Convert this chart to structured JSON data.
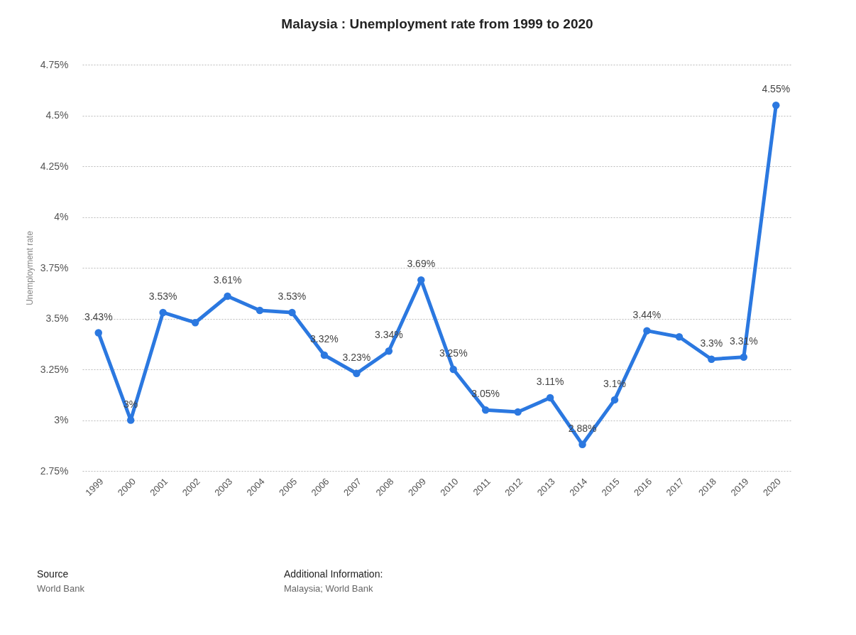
{
  "chart_data": {
    "type": "line",
    "title": "Malaysia : Unemployment rate from 1999 to 2020",
    "ylabel": "Unemployment rate",
    "categories": [
      "1999",
      "2000",
      "2001",
      "2002",
      "2003",
      "2004",
      "2005",
      "2006",
      "2007",
      "2008",
      "2009",
      "2010",
      "2011",
      "2012",
      "2013",
      "2014",
      "2015",
      "2016",
      "2017",
      "2018",
      "2019",
      "2020"
    ],
    "series": [
      {
        "color": "#2b78e0",
        "values": [
          3.43,
          3.0,
          3.53,
          3.48,
          3.61,
          3.54,
          3.53,
          3.32,
          3.23,
          3.34,
          3.69,
          3.25,
          3.05,
          3.04,
          3.11,
          2.88,
          3.1,
          3.44,
          3.41,
          3.3,
          3.31,
          4.55
        ],
        "value_labels": [
          "3.43%",
          "3%",
          "3.53%",
          null,
          "3.61%",
          null,
          "3.53%",
          "3.32%",
          "3.23%",
          "3.34%",
          "3.69%",
          "3.25%",
          "3.05%",
          null,
          "3.11%",
          "2.88%",
          "3.1%",
          "3.44%",
          null,
          "3.3%",
          "3.31%",
          "4.55%"
        ]
      }
    ],
    "ylim": [
      2.75,
      4.75
    ],
    "yticks": [
      {
        "value": 2.75,
        "label": "2.75%"
      },
      {
        "value": 3,
        "label": "3%"
      },
      {
        "value": 3.25,
        "label": "3.25%"
      },
      {
        "value": 3.5,
        "label": "3.5%"
      },
      {
        "value": 3.75,
        "label": "3.75%"
      },
      {
        "value": 4,
        "label": "4%"
      },
      {
        "value": 4.25,
        "label": "4.25%"
      },
      {
        "value": 4.5,
        "label": "4.5%"
      },
      {
        "value": 4.75,
        "label": "4.75%"
      }
    ],
    "grid": "y",
    "marker": "circle",
    "line_style": "solid",
    "legend": false,
    "annotations": [
      "Source",
      "World Bank",
      "Additional Information:",
      "Malaysia; World Bank"
    ]
  }
}
